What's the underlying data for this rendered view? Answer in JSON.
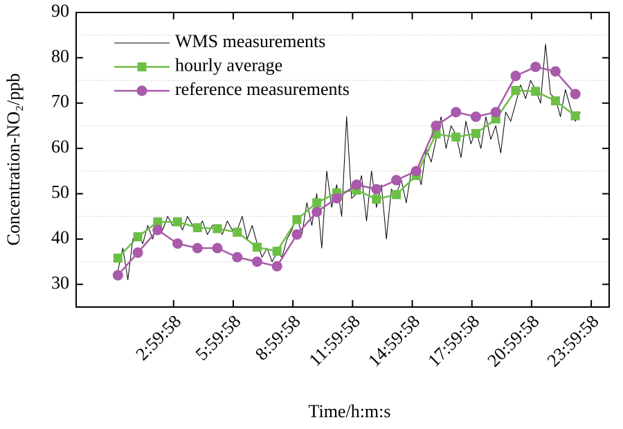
{
  "chart_data": {
    "type": "line",
    "xlabel": "Time/h:m:s",
    "ylabel": "Concentration-NO₂/ppb",
    "xlim": [
      -1.9,
      24.9
    ],
    "xticks": [
      {
        "value": 2.9994,
        "label": "2:59:58"
      },
      {
        "value": 5.9994,
        "label": "5:59:58"
      },
      {
        "value": 8.9994,
        "label": "8:59:58"
      },
      {
        "value": 11.9994,
        "label": "11:59:58"
      },
      {
        "value": 14.9994,
        "label": "14:59:58"
      },
      {
        "value": 17.9994,
        "label": "17:59:58"
      },
      {
        "value": 20.9994,
        "label": "20:59:58"
      },
      {
        "value": 23.9994,
        "label": "23:59:58"
      }
    ],
    "ylim": [
      25,
      90
    ],
    "yticks": [
      30,
      40,
      50,
      60,
      70,
      80,
      90
    ],
    "y_minor_grid": [
      35,
      45,
      55,
      65,
      75,
      85
    ],
    "legend": "upper-left",
    "series": [
      {
        "name": "WMS measurements",
        "color": "#000000",
        "marker": "none",
        "x": [
          0.2,
          0.45,
          0.7,
          0.95,
          1.2,
          1.45,
          1.7,
          1.95,
          2.2,
          2.45,
          2.7,
          2.95,
          3.2,
          3.45,
          3.7,
          3.95,
          4.2,
          4.45,
          4.7,
          4.95,
          5.2,
          5.45,
          5.7,
          5.95,
          6.2,
          6.45,
          6.7,
          6.95,
          7.2,
          7.45,
          7.7,
          7.95,
          8.2,
          8.45,
          8.7,
          8.95,
          9.2,
          9.45,
          9.7,
          9.95,
          10.2,
          10.45,
          10.7,
          10.95,
          11.2,
          11.45,
          11.7,
          11.95,
          12.2,
          12.45,
          12.7,
          12.95,
          13.2,
          13.45,
          13.7,
          13.95,
          14.2,
          14.45,
          14.7,
          14.95,
          15.2,
          15.45,
          15.7,
          15.95,
          16.2,
          16.45,
          16.7,
          16.95,
          17.2,
          17.45,
          17.7,
          17.95,
          18.2,
          18.45,
          18.7,
          18.95,
          19.2,
          19.45,
          19.7,
          19.95,
          20.2,
          20.45,
          20.7,
          20.95,
          21.2,
          21.45,
          21.7,
          21.95,
          22.2,
          22.45,
          22.7,
          22.95,
          23.2,
          23.45
        ],
        "values": [
          33,
          38,
          31,
          40,
          41,
          39,
          43,
          40,
          44,
          42,
          45,
          43,
          44,
          42,
          45,
          43,
          42,
          44,
          41,
          43,
          43,
          41,
          44,
          42,
          42,
          45,
          40,
          43,
          39,
          36,
          38,
          35,
          37,
          36,
          40,
          42,
          45,
          41,
          48,
          43,
          50,
          38,
          55,
          47,
          52,
          45,
          67,
          49,
          50,
          54,
          44,
          55,
          47,
          52,
          40,
          51,
          50,
          53,
          48,
          55,
          56,
          52,
          60,
          57,
          62,
          67,
          60,
          65,
          63,
          58,
          66,
          61,
          64,
          60,
          67,
          62,
          65,
          59,
          68,
          66,
          70,
          74,
          71,
          75,
          73,
          70,
          83,
          72,
          71,
          67,
          73,
          69,
          66,
          68
        ]
      },
      {
        "name": "hourly average",
        "color": "#6cbf45",
        "marker": "square",
        "x": [
          0.2,
          1.2,
          2.2,
          3.2,
          4.2,
          5.2,
          6.2,
          7.2,
          8.2,
          9.2,
          10.2,
          11.2,
          12.2,
          13.2,
          14.2,
          15.2,
          16.2,
          17.2,
          18.2,
          19.2,
          20.2,
          21.2,
          22.2,
          23.2
        ],
        "values": [
          35.8,
          40.5,
          43.8,
          43.8,
          42.5,
          42.3,
          41.5,
          38.2,
          37.3,
          44.3,
          48,
          50.2,
          50.8,
          48.8,
          49.8,
          54,
          63.2,
          62.5,
          63.3,
          66.5,
          72.8,
          72.6,
          70.5,
          67.2
        ]
      },
      {
        "name": "reference measurements",
        "color": "#a95aab",
        "marker": "circle",
        "x": [
          0.2,
          1.2,
          2.2,
          3.2,
          4.2,
          5.2,
          6.2,
          7.2,
          8.2,
          9.2,
          10.2,
          11.2,
          12.2,
          13.2,
          14.2,
          15.2,
          16.2,
          17.2,
          18.2,
          19.2,
          20.2,
          21.2,
          22.2,
          23.2
        ],
        "values": [
          32,
          37,
          42,
          39,
          38,
          38,
          36,
          35,
          34,
          41,
          46,
          49,
          52,
          51,
          53,
          55,
          65,
          68,
          67,
          68,
          76,
          78,
          77,
          72
        ]
      }
    ]
  }
}
